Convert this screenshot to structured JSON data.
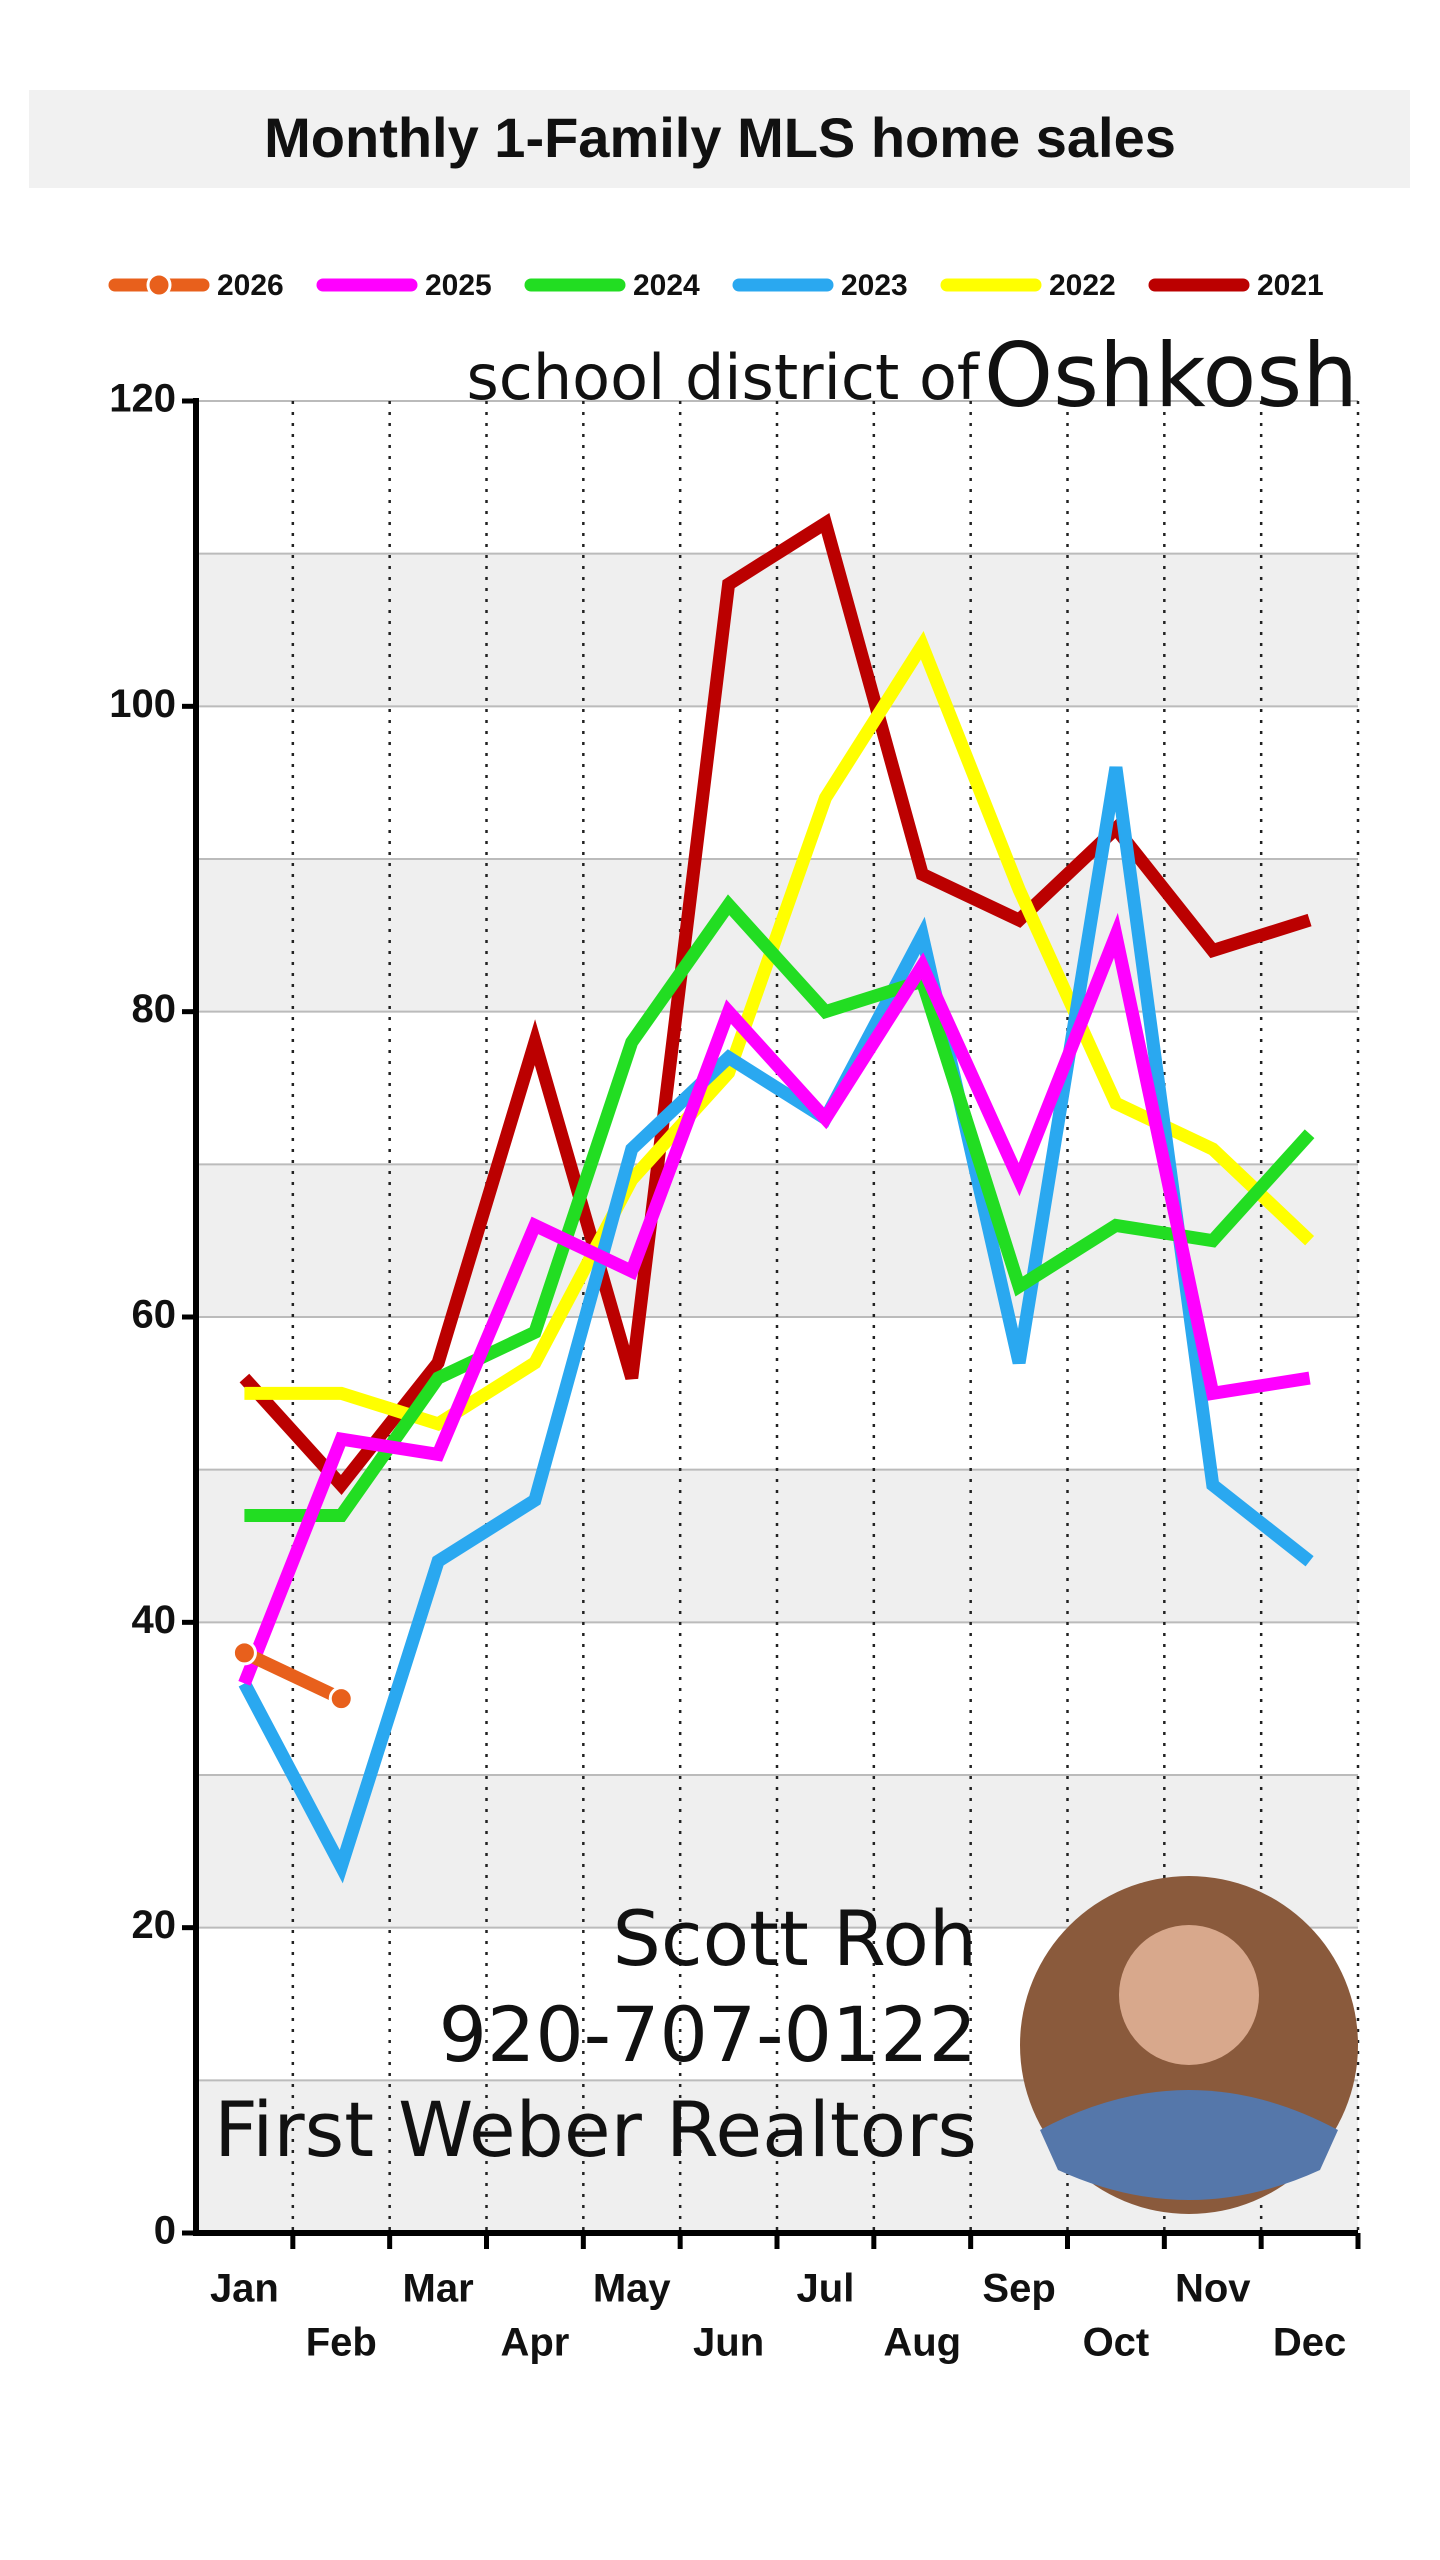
{
  "chart_data": {
    "type": "line",
    "title": "Monthly 1-Family MLS home sales",
    "annotations": [
      "school district of",
      "Oshkosh",
      "Scott Roh",
      "920-707-0122",
      "First Weber Realtors"
    ],
    "categories": [
      "Jan",
      "Feb",
      "Mar",
      "Apr",
      "May",
      "Jun",
      "Jul",
      "Aug",
      "Sep",
      "Oct",
      "Nov",
      "Dec"
    ],
    "series": [
      {
        "name": "2026",
        "color": "#e8601c",
        "markers": true,
        "values": [
          38,
          35,
          null,
          null,
          null,
          null,
          null,
          null,
          null,
          null,
          null,
          null
        ]
      },
      {
        "name": "2025",
        "color": "#ff00ff",
        "values": [
          36,
          52,
          51,
          66,
          63,
          80,
          73,
          83,
          69,
          85,
          55,
          56
        ]
      },
      {
        "name": "2024",
        "color": "#22dd22",
        "values": [
          47,
          47,
          56,
          59,
          78,
          87,
          80,
          82,
          62,
          66,
          65,
          72
        ]
      },
      {
        "name": "2023",
        "color": "#2aa8f0",
        "values": [
          36,
          24,
          44,
          48,
          71,
          77,
          73,
          85,
          57,
          96,
          49,
          44
        ]
      },
      {
        "name": "2022",
        "color": "#ffff00",
        "values": [
          55,
          55,
          53,
          57,
          69,
          76,
          94,
          104,
          88,
          74,
          71,
          65
        ]
      },
      {
        "name": "2021",
        "color": "#bb0000",
        "values": [
          56,
          49,
          57,
          78,
          56,
          108,
          112,
          89,
          86,
          92,
          84,
          86
        ]
      }
    ],
    "ylim": [
      0,
      120
    ],
    "yticks": [
      0,
      20,
      40,
      60,
      80,
      100,
      120
    ],
    "grid": true,
    "legend": "top"
  }
}
